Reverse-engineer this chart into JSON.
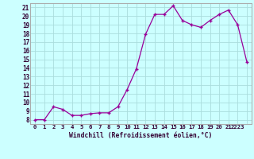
{
  "x": [
    0,
    1,
    2,
    3,
    4,
    5,
    6,
    7,
    8,
    9,
    10,
    11,
    12,
    13,
    14,
    15,
    16,
    17,
    18,
    19,
    20,
    21,
    22,
    23
  ],
  "y": [
    8.0,
    8.0,
    9.5,
    9.2,
    8.5,
    8.5,
    8.7,
    8.8,
    8.8,
    9.5,
    11.5,
    13.9,
    17.9,
    20.2,
    20.2,
    21.2,
    19.5,
    19.0,
    18.7,
    19.5,
    20.2,
    20.7,
    19.0,
    14.7
  ],
  "line_color": "#990099",
  "marker": "+",
  "marker_size": 3,
  "bg_color": "#ccffff",
  "grid_color": "#aadddd",
  "xlabel": "Windchill (Refroidissement éolien,°C)",
  "xlim": [
    -0.5,
    23.5
  ],
  "ylim": [
    7.5,
    21.5
  ],
  "yticks": [
    8,
    9,
    10,
    11,
    12,
    13,
    14,
    15,
    16,
    17,
    18,
    19,
    20,
    21
  ],
  "xticks": [
    0,
    1,
    2,
    3,
    4,
    5,
    6,
    7,
    8,
    9,
    10,
    11,
    12,
    13,
    14,
    15,
    16,
    17,
    18,
    19,
    20,
    21,
    22,
    23
  ],
  "xtick_labels": [
    "0",
    "1",
    "2",
    "3",
    "4",
    "5",
    "6",
    "7",
    "8",
    "9",
    "10",
    "11",
    "12",
    "13",
    "14",
    "15",
    "16",
    "17",
    "18",
    "19",
    "20",
    "21",
    "2223",
    ""
  ]
}
